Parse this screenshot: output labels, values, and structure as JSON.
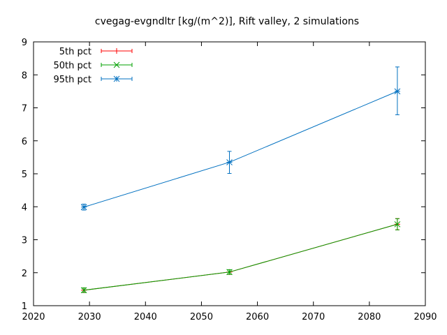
{
  "chart_data": {
    "type": "line",
    "title": "cvegag-evgndltr [kg/(m^2)], Rift valley, 2 simulations",
    "xlabel": "",
    "ylabel": "",
    "xlim": [
      2020,
      2090
    ],
    "ylim": [
      1,
      9
    ],
    "xticks": [
      2020,
      2030,
      2040,
      2050,
      2060,
      2070,
      2080,
      2090
    ],
    "yticks": [
      1,
      2,
      3,
      4,
      5,
      6,
      7,
      8,
      9
    ],
    "grid": false,
    "legend_position": "top-left",
    "x": [
      2029,
      2055,
      2085
    ],
    "series": [
      {
        "name": "5th pct",
        "color": "#ff0000",
        "marker": "plus",
        "values": [
          1.47,
          2.02,
          3.47
        ],
        "err_low": [
          1.4,
          1.95,
          3.3
        ],
        "err_high": [
          1.54,
          2.09,
          3.64
        ]
      },
      {
        "name": "50th pct",
        "color": "#00a000",
        "marker": "x",
        "values": [
          1.47,
          2.02,
          3.47
        ],
        "err_low": [
          1.4,
          1.95,
          3.3
        ],
        "err_high": [
          1.54,
          2.09,
          3.64
        ]
      },
      {
        "name": "95th pct",
        "color": "#0070c0",
        "marker": "star",
        "values": [
          3.99,
          5.35,
          7.5
        ],
        "err_low": [
          3.9,
          5.01,
          6.79
        ],
        "err_high": [
          4.08,
          5.68,
          8.24
        ]
      }
    ]
  }
}
